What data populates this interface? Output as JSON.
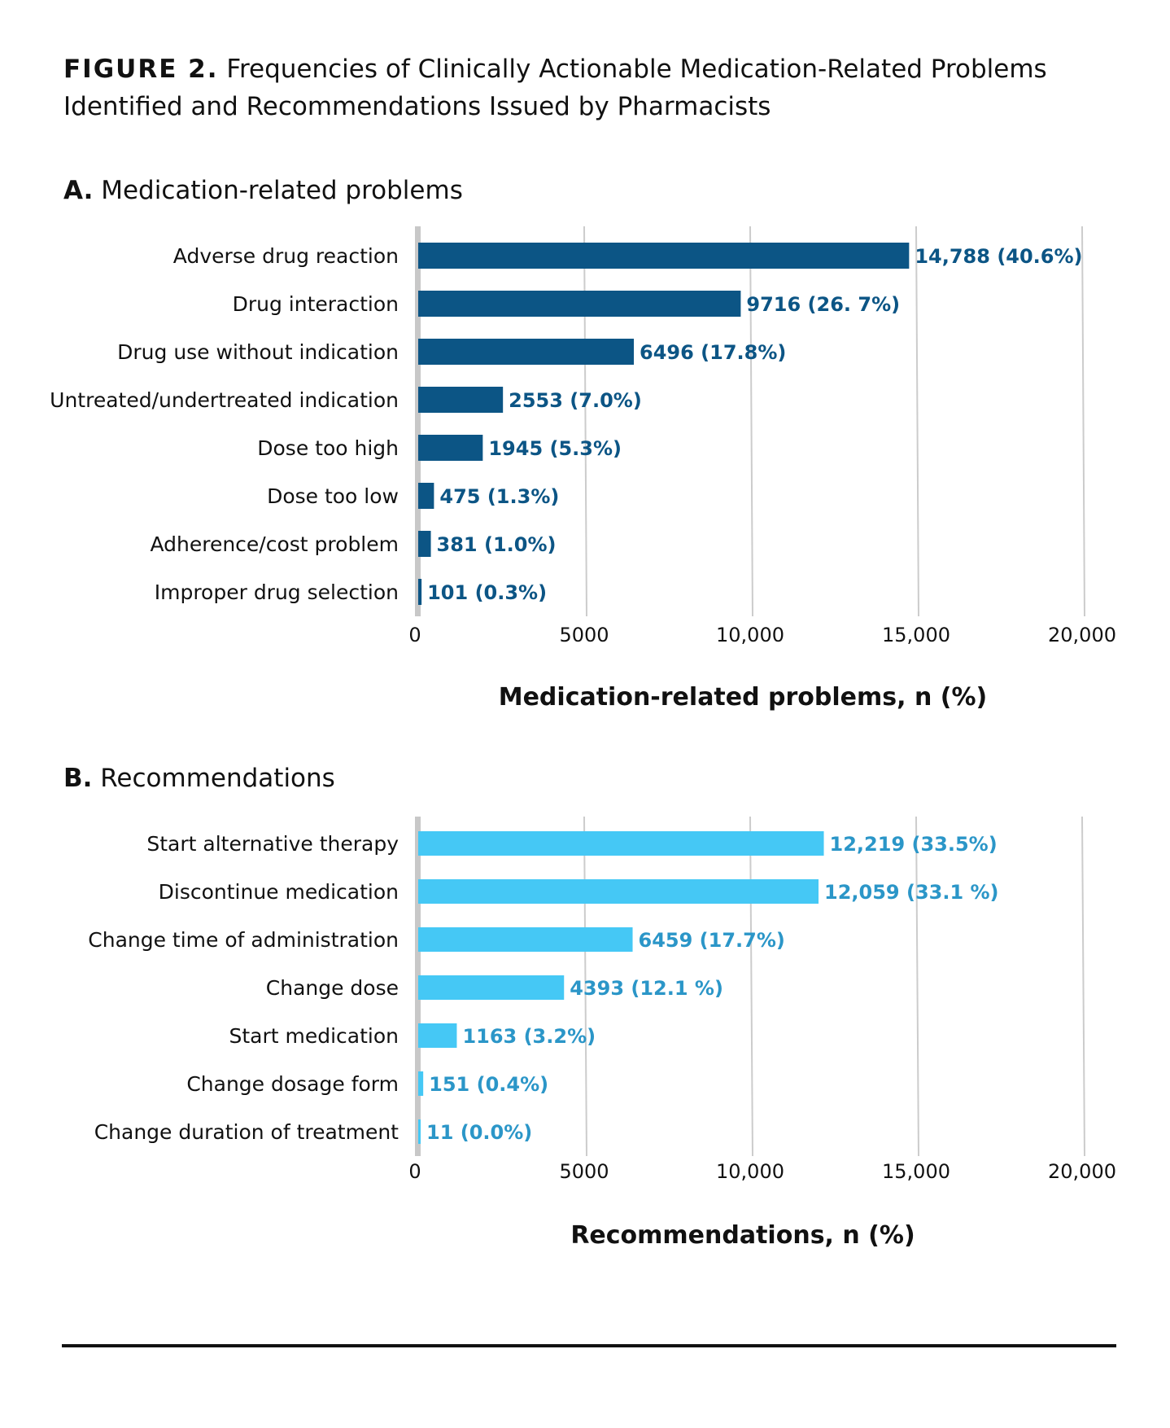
{
  "figure": {
    "lead": "FIGURE 2.",
    "title": "Frequencies of Clinically Actionable Medication-Related Problems Identified and Recommendations Issued by Pharmacists"
  },
  "chart_data": [
    {
      "type": "bar",
      "orientation": "horizontal",
      "panel_letter": "A.",
      "panel_title": "Medication-related problems",
      "categories": [
        "Adverse drug reaction",
        "Drug interaction",
        "Drug use without indication",
        "Untreated/undertreated indication",
        "Dose too high",
        "Dose too low",
        "Adherence/cost problem",
        "Improper drug selection"
      ],
      "values": [
        14788,
        9716,
        6496,
        2553,
        1945,
        475,
        381,
        101
      ],
      "value_labels": [
        "14,788 (40.6%)",
        "9716 (26. 7%)",
        "6496 (17.8%)",
        "2553 (7.0%)",
        "1945 (5.3%)",
        "475 (1.3%)",
        "381 (1.0%)",
        "101 (0.3%)"
      ],
      "xlim": [
        0,
        20000
      ],
      "ticks": [
        0,
        5000,
        10000,
        15000,
        20000
      ],
      "tick_labels": [
        "0",
        "5000",
        "10,000",
        "15,000",
        "20,000"
      ],
      "xlabel": "Medication-related problems, n (%)",
      "ylabel": "",
      "grid": true,
      "bar_color": "#0c5585",
      "label_color": "#0c5585"
    },
    {
      "type": "bar",
      "orientation": "horizontal",
      "panel_letter": "B.",
      "panel_title": "Recommendations",
      "categories": [
        "Start alternative therapy",
        "Discontinue medication",
        "Change time of administration",
        "Change dose",
        "Start medication",
        "Change dosage form",
        "Change duration of treatment"
      ],
      "values": [
        12219,
        12059,
        6459,
        4393,
        1163,
        151,
        11
      ],
      "value_labels": [
        "12,219 (33.5%)",
        "12,059 (33.1 %)",
        "6459 (17.7%)",
        "4393 (12.1 %)",
        "1163 (3.2%)",
        "151 (0.4%)",
        "11 (0.0%)"
      ],
      "xlim": [
        0,
        20000
      ],
      "ticks": [
        0,
        5000,
        10000,
        15000,
        20000
      ],
      "tick_labels": [
        "0",
        "5000",
        "10,000",
        "15,000",
        "20,000"
      ],
      "xlabel": "Recommendations, n (%)",
      "ylabel": "",
      "grid": true,
      "bar_color": "#45c8f5",
      "label_color": "#2b96c8"
    }
  ]
}
